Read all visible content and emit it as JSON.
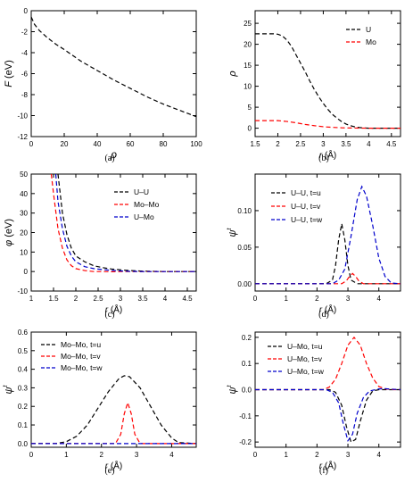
{
  "chart_data": [
    {
      "panel": "(a)",
      "type": "line",
      "ylabel": "F (eV)",
      "xlabel": "ρ",
      "xlim": [
        0,
        100
      ],
      "ylim": [
        -12,
        0
      ],
      "xticks": [
        0,
        20,
        40,
        60,
        80,
        100
      ],
      "yticks": [
        0,
        -2,
        -4,
        -6,
        -8,
        -10,
        -12
      ],
      "grid": false,
      "series": [
        {
          "color": "#000000",
          "dash": "dashed",
          "x": [
            0,
            2,
            5,
            10,
            15,
            20,
            30,
            40,
            50,
            60,
            70,
            80,
            90,
            100
          ],
          "y": [
            -0.6,
            -1.3,
            -1.9,
            -2.6,
            -3.2,
            -3.7,
            -4.8,
            -5.7,
            -6.6,
            -7.4,
            -8.2,
            -8.9,
            -9.5,
            -10.1
          ]
        }
      ]
    },
    {
      "panel": "(b)",
      "type": "line",
      "ylabel": "ρ",
      "xlabel": "r (Å)",
      "xlim": [
        1.5,
        4.7
      ],
      "ylim": [
        -2,
        28
      ],
      "xticks": [
        1.5,
        2.0,
        2.5,
        3.0,
        3.5,
        4.0,
        4.5
      ],
      "yticks": [
        0,
        5,
        10,
        15,
        20,
        25
      ],
      "legend": "top-right",
      "series": [
        {
          "name": "U",
          "color": "#000000",
          "dash": "dashed",
          "x": [
            1.5,
            1.9,
            2.0,
            2.1,
            2.2,
            2.3,
            2.4,
            2.5,
            2.6,
            2.7,
            2.8,
            2.9,
            3.0,
            3.1,
            3.2,
            3.3,
            3.4,
            3.5,
            3.6,
            3.7,
            3.8,
            3.9,
            4.0,
            4.7
          ],
          "y": [
            22.5,
            22.5,
            22.4,
            22.0,
            21.0,
            19.5,
            17.5,
            15.5,
            13.5,
            11.3,
            9.3,
            7.5,
            5.9,
            4.5,
            3.3,
            2.4,
            1.6,
            1.0,
            0.6,
            0.3,
            0.15,
            0.05,
            0.0,
            0.0
          ]
        },
        {
          "name": "Mo",
          "color": "#ff0000",
          "dash": "dashed",
          "x": [
            1.5,
            2.0,
            2.2,
            2.4,
            2.6,
            2.8,
            3.0,
            3.2,
            3.4,
            3.6,
            3.8,
            4.0,
            4.7
          ],
          "y": [
            1.8,
            1.8,
            1.6,
            1.3,
            0.9,
            0.6,
            0.35,
            0.2,
            0.1,
            0.05,
            0.02,
            0.0,
            0.0
          ]
        }
      ]
    },
    {
      "panel": "(c)",
      "type": "line",
      "ylabel": "φ (eV)",
      "xlabel": "r (Å)",
      "xlim": [
        1.0,
        4.7
      ],
      "ylim": [
        -10,
        50
      ],
      "xticks": [
        1.0,
        1.5,
        2.0,
        2.5,
        3.0,
        3.5,
        4.0,
        4.5
      ],
      "yticks": [
        -10,
        0,
        10,
        20,
        30,
        40,
        50
      ],
      "legend": "top-right",
      "series": [
        {
          "name": "U–U",
          "color": "#000000",
          "dash": "dashed",
          "x": [
            1.6,
            1.7,
            1.8,
            1.9,
            2.0,
            2.2,
            2.4,
            2.6,
            2.8,
            3.0,
            3.2,
            3.5,
            4.0,
            4.7
          ],
          "y": [
            50,
            30,
            19,
            12,
            8,
            5,
            3,
            2,
            1.3,
            0.9,
            0.5,
            0.2,
            0.0,
            0.0
          ]
        },
        {
          "name": "Mo–Mo",
          "color": "#ff0000",
          "dash": "dashed",
          "x": [
            1.45,
            1.5,
            1.6,
            1.7,
            1.8,
            1.9,
            2.0,
            2.2,
            2.4,
            2.6,
            2.8,
            3.0,
            3.5,
            4.0,
            4.7
          ],
          "y": [
            50,
            40,
            22,
            12,
            6,
            3,
            1.5,
            0.5,
            0.0,
            0.0,
            -0.1,
            0.0,
            0.0,
            0.0,
            0.0
          ]
        },
        {
          "name": "U–Mo",
          "color": "#0000cc",
          "dash": "dashed",
          "x": [
            1.55,
            1.6,
            1.7,
            1.8,
            1.9,
            2.0,
            2.2,
            2.4,
            2.6,
            2.8,
            3.0,
            3.2,
            3.5,
            4.0,
            4.7
          ],
          "y": [
            50,
            36,
            22,
            13,
            8,
            5,
            2.5,
            1.5,
            1.0,
            0.6,
            0.3,
            0.1,
            0.0,
            0.0,
            0.0
          ]
        }
      ]
    },
    {
      "panel": "(d)",
      "type": "line",
      "ylabel": "ψ^t",
      "xlabel": "r (Å)",
      "xlim": [
        0,
        4.7
      ],
      "ylim": [
        -0.01,
        0.15
      ],
      "xticks": [
        0,
        1,
        2,
        3,
        4
      ],
      "yticks": [
        0.0,
        0.05,
        0.1
      ],
      "ytick_labels": [
        "0.00",
        "0.05",
        "0.10"
      ],
      "legend": "top-left",
      "series": [
        {
          "name": "U–U, t=u",
          "color": "#000000",
          "dash": "dashed",
          "x": [
            0,
            2.3,
            2.5,
            2.6,
            2.7,
            2.8,
            2.9,
            3.0,
            3.1,
            3.3,
            4.7
          ],
          "y": [
            0,
            0,
            0.005,
            0.025,
            0.06,
            0.082,
            0.06,
            0.025,
            0.005,
            0,
            0
          ]
        },
        {
          "name": "U–U, t=v",
          "color": "#ff0000",
          "dash": "dashed",
          "x": [
            0,
            2.8,
            2.95,
            3.05,
            3.15,
            3.25,
            3.35,
            3.5,
            4.7
          ],
          "y": [
            0,
            0,
            0.004,
            0.01,
            0.014,
            0.01,
            0.004,
            0,
            0
          ]
        },
        {
          "name": "U–U, t=w",
          "color": "#0000cc",
          "dash": "dashed",
          "x": [
            0,
            2.5,
            2.7,
            2.9,
            3.1,
            3.3,
            3.45,
            3.6,
            3.8,
            4.0,
            4.2,
            4.4,
            4.7
          ],
          "y": [
            0,
            0,
            0.005,
            0.02,
            0.065,
            0.115,
            0.133,
            0.12,
            0.08,
            0.035,
            0.01,
            0.001,
            0
          ]
        }
      ]
    },
    {
      "panel": "(e)",
      "type": "line",
      "ylabel": "ψ^t",
      "xlabel": "r (Å)",
      "xlim": [
        0,
        4.7
      ],
      "ylim": [
        -0.02,
        0.6
      ],
      "xticks": [
        0,
        1,
        2,
        3,
        4
      ],
      "yticks": [
        0.0,
        0.1,
        0.2,
        0.3,
        0.4,
        0.5,
        0.6
      ],
      "ytick_labels": [
        "0.0",
        "0.1",
        "0.2",
        "0.3",
        "0.4",
        "0.5",
        "0.6"
      ],
      "legend": "top-left",
      "series": [
        {
          "name": "Mo–Mo, t=u",
          "color": "#000000",
          "dash": "dashed",
          "x": [
            0,
            0.7,
            1.0,
            1.3,
            1.6,
            1.9,
            2.2,
            2.5,
            2.65,
            2.8,
            3.1,
            3.4,
            3.7,
            4.0,
            4.2,
            4.7
          ],
          "y": [
            0,
            0,
            0.01,
            0.04,
            0.1,
            0.19,
            0.28,
            0.35,
            0.365,
            0.36,
            0.3,
            0.2,
            0.1,
            0.03,
            0.005,
            0
          ]
        },
        {
          "name": "Mo–Mo, t=v",
          "color": "#ff0000",
          "dash": "dashed",
          "x": [
            0,
            2.4,
            2.55,
            2.65,
            2.75,
            2.85,
            2.95,
            3.1,
            4.7
          ],
          "y": [
            0,
            0,
            0.05,
            0.16,
            0.22,
            0.16,
            0.05,
            0,
            0
          ]
        },
        {
          "name": "Mo–Mo, t=w",
          "color": "#0000cc",
          "dash": "dashed",
          "x": [
            0,
            4.7
          ],
          "y": [
            0,
            0
          ]
        }
      ]
    },
    {
      "panel": "(f)",
      "type": "line",
      "ylabel": "ψ^t",
      "xlabel": "r (Å)",
      "xlim": [
        0,
        4.7
      ],
      "ylim": [
        -0.22,
        0.22
      ],
      "xticks": [
        0,
        1,
        2,
        3,
        4
      ],
      "yticks": [
        -0.2,
        -0.1,
        0.0,
        0.1,
        0.2
      ],
      "ytick_labels": [
        "-0.2",
        "-0.1",
        "0.0",
        "0.1",
        "0.2"
      ],
      "legend": "top-left",
      "series": [
        {
          "name": "U–Mo, t=u",
          "color": "#000000",
          "dash": "dashed",
          "x": [
            0,
            2.4,
            2.6,
            2.8,
            2.95,
            3.1,
            3.25,
            3.4,
            3.6,
            3.8,
            4.0,
            4.7
          ],
          "y": [
            0,
            0,
            -0.01,
            -0.06,
            -0.14,
            -0.2,
            -0.19,
            -0.12,
            -0.04,
            -0.005,
            0,
            0
          ]
        },
        {
          "name": "U–Mo, t=v",
          "color": "#ff0000",
          "dash": "dashed",
          "x": [
            0,
            2.2,
            2.4,
            2.6,
            2.8,
            3.0,
            3.2,
            3.4,
            3.6,
            3.8,
            4.0,
            4.2,
            4.5,
            4.7
          ],
          "y": [
            0,
            0,
            0.01,
            0.04,
            0.1,
            0.17,
            0.2,
            0.17,
            0.1,
            0.045,
            0.012,
            0.003,
            0,
            0
          ]
        },
        {
          "name": "U–Mo, t=w",
          "color": "#0000cc",
          "dash": "dashed",
          "x": [
            0,
            2.3,
            2.5,
            2.7,
            2.85,
            3.0,
            3.15,
            3.3,
            3.5,
            3.7,
            4.0,
            4.2,
            4.4,
            4.7
          ],
          "y": [
            0,
            0,
            -0.01,
            -0.05,
            -0.13,
            -0.195,
            -0.17,
            -0.09,
            -0.03,
            -0.005,
            0.003,
            0.004,
            0.002,
            0
          ]
        }
      ]
    }
  ]
}
